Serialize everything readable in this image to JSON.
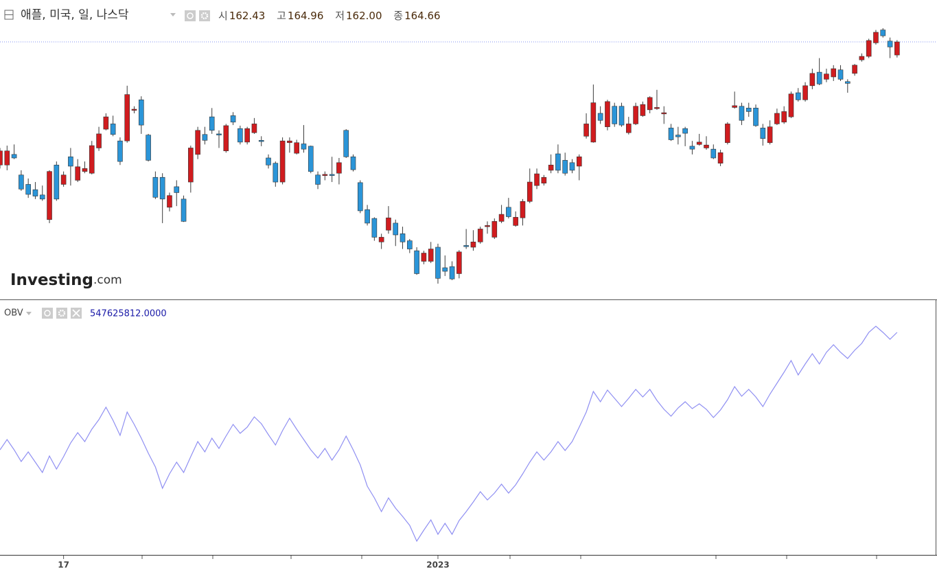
{
  "chart_data": [
    {
      "type": "candlestick",
      "title": "애플, 미국, 일, 나스닥",
      "legend": [
        {
          "label": "시",
          "value": "162.43"
        },
        {
          "label": "고",
          "value": "164.96"
        },
        {
          "label": "저",
          "value": "162.00"
        },
        {
          "label": "종",
          "value": "164.66"
        }
      ],
      "watermark": [
        "Investing",
        ".com"
      ],
      "up_color": "#d01c1f",
      "down_color": "#2b95d8",
      "last_line_color": "#7f8ff0",
      "open": [
        143.7,
        143.7,
        145.5,
        142.0,
        140.4,
        139.5,
        138.6,
        134.4,
        143.7,
        140.4,
        145.1,
        141.1,
        142.6,
        142.3,
        146.6,
        149.8,
        150.7,
        147.8,
        147.8,
        153.0,
        154.8,
        148.8,
        141.6,
        141.6,
        136.5,
        140.0,
        137.9,
        140.8,
        145.5,
        148.9,
        151.9,
        149.0,
        146.1,
        152.1,
        149.9,
        147.6,
        149.2,
        147.9,
        144.9,
        144.0,
        140.8,
        147.5,
        145.7,
        147.3,
        146.9,
        142.0,
        141.9,
        142.1,
        142.3,
        149.6,
        145.1,
        140.7,
        136.1,
        134.6,
        130.6,
        132.6,
        133.8,
        132.0,
        130.8,
        129.1,
        127.3,
        127.3,
        129.7,
        126.2,
        126.4,
        125.2,
        130.0,
        129.7,
        130.6,
        133.2,
        131.4,
        134.1,
        136.5,
        133.4,
        134.7,
        137.5,
        140.2,
        140.6,
        142.8,
        145.6,
        144.5,
        144.1,
        143.5,
        148.6,
        147.6,
        152.5,
        150.2,
        153.7,
        153.7,
        149.2,
        150.7,
        152.1,
        153.1,
        153.3,
        152.4,
        150.0,
        148.8,
        149.9,
        146.9,
        147.2,
        146.6,
        146.4,
        144.0,
        147.5,
        153.5,
        153.7,
        153.4,
        153.4,
        150.0,
        147.5,
        150.7,
        151.0,
        151.9,
        156.0,
        154.8,
        157.2,
        159.5,
        158.3,
        158.7,
        159.9,
        157.9,
        159.3,
        161.6,
        162.2,
        164.5,
        166.7,
        164.8,
        162.43
      ],
      "high": [
        146.6,
        147.0,
        147.2,
        142.8,
        141.4,
        140.8,
        140.2,
        142.8,
        144.3,
        142.6,
        146.6,
        144.7,
        144.3,
        147.8,
        150.2,
        152.5,
        152.1,
        148.4,
        157.2,
        153.7,
        155.4,
        149.0,
        142.6,
        142.3,
        139.0,
        141.1,
        138.5,
        147.0,
        150.2,
        150.2,
        153.4,
        149.6,
        150.7,
        152.7,
        150.4,
        150.2,
        151.7,
        148.6,
        145.5,
        144.3,
        148.4,
        148.4,
        148.0,
        150.5,
        147.0,
        142.6,
        142.6,
        145.1,
        144.9,
        149.8,
        145.5,
        141.1,
        136.9,
        134.8,
        132.0,
        136.7,
        134.4,
        133.2,
        131.1,
        129.7,
        129.1,
        130.6,
        130.3,
        128.3,
        127.3,
        129.2,
        132.8,
        132.6,
        133.2,
        134.1,
        134.6,
        136.9,
        138.1,
        135.8,
        137.9,
        143.1,
        143.1,
        142.0,
        145.5,
        147.2,
        145.8,
        144.7,
        145.5,
        152.5,
        157.4,
        153.7,
        154.8,
        154.3,
        154.3,
        151.9,
        154.3,
        154.5,
        155.4,
        156.5,
        153.7,
        150.7,
        150.2,
        150.2,
        147.8,
        149.0,
        148.6,
        147.2,
        146.3,
        151.0,
        156.2,
        154.3,
        154.3,
        154.0,
        150.7,
        151.3,
        153.3,
        153.7,
        156.2,
        156.8,
        157.8,
        160.1,
        161.9,
        160.1,
        160.7,
        160.7,
        158.3,
        160.9,
        162.7,
        165.2,
        166.7,
        167.0,
        165.4,
        164.96
      ],
      "low": [
        143.1,
        142.8,
        144.7,
        139.3,
        138.1,
        137.9,
        137.6,
        133.8,
        137.6,
        140.0,
        140.2,
        140.8,
        142.3,
        142.1,
        146.1,
        149.6,
        148.6,
        143.7,
        147.5,
        152.5,
        149.0,
        144.3,
        137.9,
        133.8,
        135.8,
        136.7,
        134.0,
        139.0,
        144.7,
        147.2,
        149.0,
        146.6,
        145.8,
        150.5,
        147.2,
        147.2,
        149.0,
        146.9,
        143.1,
        140.0,
        140.4,
        145.8,
        145.5,
        145.8,
        142.3,
        139.6,
        141.1,
        140.8,
        140.4,
        144.9,
        142.6,
        135.5,
        133.4,
        130.8,
        129.4,
        132.0,
        129.9,
        129.4,
        128.7,
        125.0,
        126.8,
        127.0,
        123.5,
        124.8,
        124.1,
        124.4,
        129.4,
        129.1,
        130.3,
        132.0,
        131.1,
        133.8,
        134.6,
        133.2,
        133.4,
        137.2,
        139.6,
        140.2,
        142.3,
        142.3,
        141.9,
        142.3,
        141.1,
        148.2,
        147.5,
        150.7,
        149.6,
        150.2,
        150.2,
        148.9,
        150.5,
        151.9,
        152.5,
        153.1,
        150.7,
        147.8,
        147.2,
        146.9,
        145.5,
        147.0,
        146.3,
        144.7,
        143.5,
        147.2,
        153.3,
        150.5,
        151.9,
        150.2,
        147.0,
        147.2,
        150.5,
        150.7,
        151.7,
        154.5,
        154.5,
        156.6,
        157.3,
        157.8,
        158.0,
        158.0,
        156.0,
        158.9,
        161.3,
        161.9,
        164.2,
        165.4,
        161.9,
        162
      ],
      "close": [
        146.1,
        146.1,
        144.9,
        139.6,
        138.7,
        138.4,
        137.9,
        142.6,
        137.9,
        142.0,
        143.5,
        143.4,
        143.1,
        147.0,
        149.0,
        151.9,
        148.9,
        144.3,
        155.7,
        153.2,
        150.5,
        144.5,
        138.2,
        137.9,
        138.5,
        139.0,
        134.1,
        146.6,
        149.6,
        147.9,
        149.6,
        148.8,
        150.4,
        151.0,
        147.6,
        149.9,
        150.7,
        147.7,
        143.7,
        140.8,
        147.8,
        147.8,
        147.5,
        146.4,
        142.6,
        140.4,
        142.1,
        141.9,
        144.1,
        145.1,
        142.9,
        135.9,
        133.8,
        131.4,
        131.4,
        134.7,
        131.8,
        130.6,
        129.4,
        125.2,
        128.7,
        129.4,
        124.4,
        125.6,
        124.3,
        128.9,
        129.8,
        130.6,
        132.8,
        133.4,
        134.1,
        135.3,
        134.9,
        134.8,
        137.5,
        140.8,
        142.2,
        141.6,
        143.7,
        142.8,
        142.3,
        142.8,
        145.1,
        150.7,
        154.3,
        151.3,
        154.5,
        150.7,
        150.5,
        150.7,
        153.7,
        154.0,
        155.2,
        153.5,
        152.6,
        148.0,
        148.5,
        149.1,
        146.4,
        147.6,
        147.1,
        144.9,
        145.8,
        150.7,
        153.8,
        151.3,
        152.8,
        150.4,
        148.2,
        150.2,
        152.5,
        152.8,
        155.8,
        154.8,
        157.2,
        159.3,
        157.5,
        159.2,
        160.1,
        158.3,
        157.6,
        160.7,
        162.2,
        164.9,
        166.3,
        165.7,
        163.8,
        164.66
      ]
    },
    {
      "type": "line",
      "name": "OBV",
      "value_label": "547625812.0000",
      "color": "#8f8ff2",
      "categories": [
        null,
        null,
        null,
        null,
        null,
        null,
        null,
        null,
        null,
        "17",
        null,
        null,
        null,
        null,
        null,
        null,
        null,
        null,
        null,
        null,
        null,
        null,
        null,
        null,
        null,
        null,
        null,
        null,
        null,
        null,
        null,
        null,
        null,
        null,
        null,
        null,
        null,
        null,
        null,
        null,
        null,
        null,
        null,
        null,
        null,
        null,
        null,
        null,
        null,
        null,
        null,
        null,
        null,
        null,
        null,
        null,
        null,
        null,
        null,
        null,
        null,
        null,
        "2023",
        null,
        null,
        null,
        null,
        null,
        null,
        null,
        null,
        null,
        null,
        null,
        null,
        null,
        null,
        null,
        null,
        null,
        null,
        null,
        null,
        null,
        null,
        null,
        null,
        null,
        null,
        null,
        null,
        null,
        null,
        null,
        null,
        null,
        null,
        null,
        null,
        null,
        null,
        null,
        null,
        null,
        null,
        null,
        null,
        null,
        null,
        null,
        null,
        null,
        null,
        null,
        null,
        null,
        null,
        null,
        null,
        null,
        null,
        null,
        null,
        null,
        null,
        null,
        null,
        null
      ],
      "values": [
        -649400000,
        -544400000,
        -649400000,
        -768400000,
        -670400000,
        -775400000,
        -880400000,
        -712400000,
        -845400000,
        -719400000,
        -579400000,
        -474400000,
        -565400000,
        -439400000,
        -341400000,
        -215400000,
        -348400000,
        -502400000,
        -264400000,
        -390400000,
        -530400000,
        -684400000,
        -824400000,
        -1041400000,
        -894400000,
        -775400000,
        -880400000,
        -719400000,
        -565400000,
        -670400000,
        -530400000,
        -635400000,
        -509400000,
        -390400000,
        -481400000,
        -418400000,
        -313400000,
        -383400000,
        -495400000,
        -600400000,
        -453400000,
        -327400000,
        -439400000,
        -544400000,
        -649400000,
        -733400000,
        -635400000,
        -754400000,
        -649400000,
        -509400000,
        -649400000,
        -803400000,
        -1020400000,
        -1139400000,
        -1279400000,
        -1139400000,
        -1244400000,
        -1328400000,
        -1419400000,
        -1580400000,
        -1468400000,
        -1363400000,
        -1510400000,
        -1398400000,
        -1510400000,
        -1370400000,
        -1279400000,
        -1181400000,
        -1076400000,
        -1160400000,
        -1090400000,
        -999400000,
        -1090400000,
        -1006400000,
        -894400000,
        -775400000,
        -670400000,
        -754400000,
        -670400000,
        -565400000,
        -656400000,
        -565400000,
        -418400000,
        -264400000,
        -54400000,
        -159400000,
        -40400000,
        -124400000,
        -208400000,
        -124400000,
        -33400000,
        -110400000,
        -33400000,
        -145400000,
        -236400000,
        -306400000,
        -222400000,
        -159400000,
        -229400000,
        -180400000,
        -236400000,
        -320400000,
        -243400000,
        -138400000,
        -5400000,
        -103400000,
        -33400000,
        -110400000,
        -208400000,
        -82400000,
        29600000,
        141600000,
        260600000,
        113600000,
        225600000,
        330600000,
        225600000,
        344600000,
        421600000,
        344600000,
        281600000,
        365600000,
        435600000,
        547600000,
        610600000,
        547600000,
        477600000,
        547625812
      ]
    }
  ]
}
